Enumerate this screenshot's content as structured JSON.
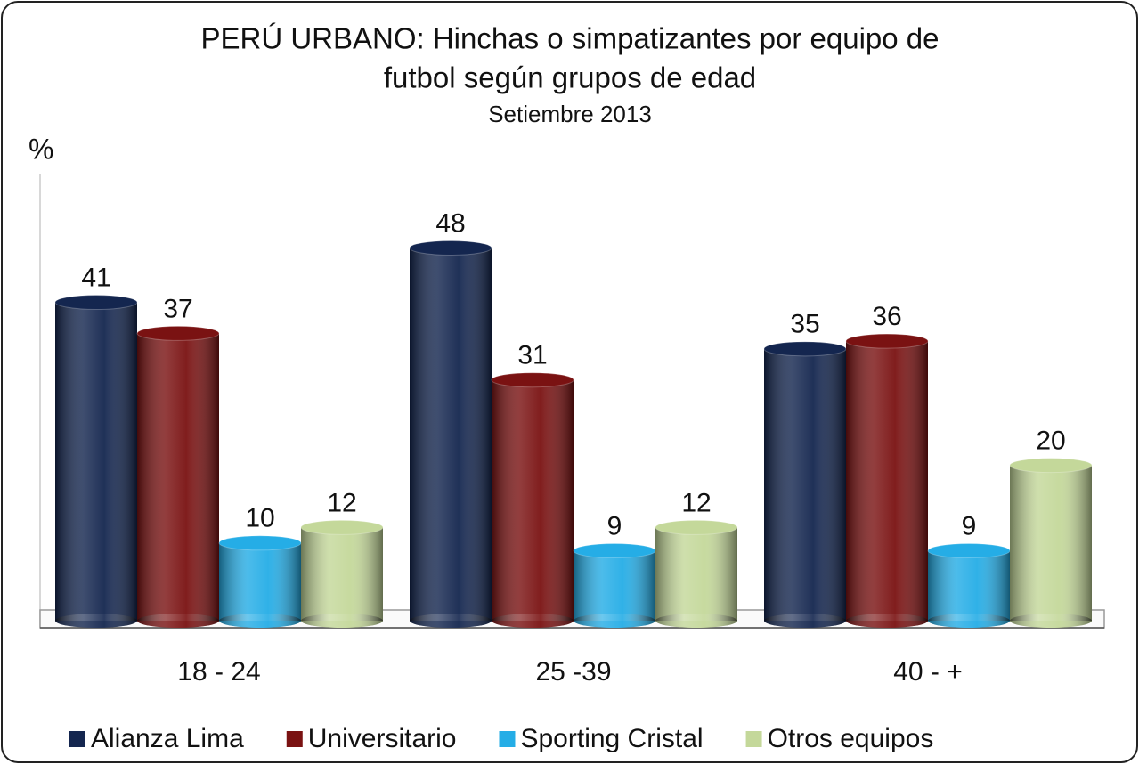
{
  "chart_data": {
    "type": "bar",
    "title": [
      "PERÚ URBANO: Hinchas o simpatizantes por equipo de",
      "futbol según grupos de edad"
    ],
    "subtitle": "Setiembre 2013",
    "y_label": "%",
    "categories": [
      "18 - 24",
      "25 -39",
      "40 - +"
    ],
    "series": [
      {
        "name": "Alianza Lima",
        "color": "#14264f",
        "values": [
          41,
          48,
          35
        ]
      },
      {
        "name": "Universitario",
        "color": "#7a1212",
        "values": [
          37,
          31,
          36
        ]
      },
      {
        "name": "Sporting Cristal",
        "color": "#25ade6",
        "values": [
          10,
          9,
          9
        ]
      },
      {
        "name": "Otros equipos",
        "color": "#c4d89a",
        "values": [
          12,
          12,
          20
        ]
      }
    ],
    "ylim": [
      0,
      57
    ],
    "legend": "bottom"
  }
}
